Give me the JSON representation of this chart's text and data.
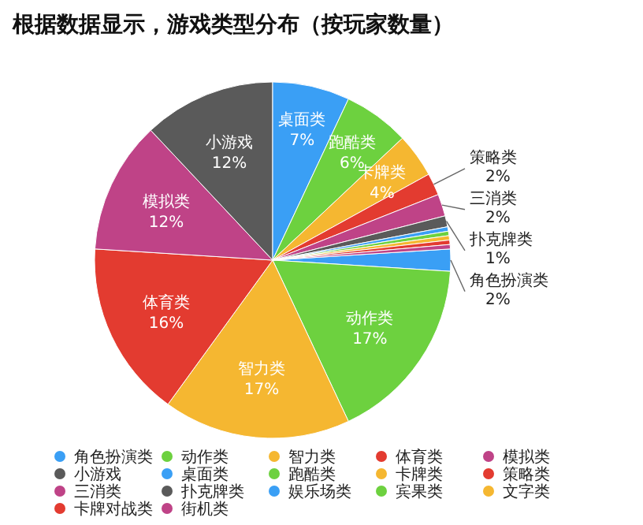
{
  "chart_data": {
    "type": "pie",
    "title": "根据数据显示，游戏类型分布（按玩家数量）",
    "categories": [
      "角色扮演类",
      "动作类",
      "智力类",
      "体育类",
      "模拟类",
      "小游戏",
      "桌面类",
      "跑酷类",
      "卡牌类",
      "策略类",
      "三消类",
      "扑克牌类",
      "娱乐场类",
      "宾果类",
      "文字类",
      "卡牌对战类",
      "街机类"
    ],
    "values": [
      2,
      17,
      17,
      16,
      12,
      12,
      7,
      6,
      4,
      2,
      2,
      1,
      0.4,
      0.4,
      0.4,
      0.4,
      0.4
    ],
    "value_labels": [
      "2%",
      "17%",
      "17%",
      "16%",
      "12%",
      "12%",
      "7%",
      "6%",
      "4%",
      "2%",
      "2%",
      "1%",
      null,
      null,
      null,
      null,
      null
    ],
    "colors": [
      "#3a9ff5",
      "#6dd13f",
      "#f5b731",
      "#e33b30",
      "#bf4387",
      "#5a5a5a",
      "#3a9ff5",
      "#6dd13f",
      "#f5b731",
      "#e33b30",
      "#bf4387",
      "#5a5a5a",
      "#3a9ff5",
      "#6dd13f",
      "#f5b731",
      "#e33b30",
      "#bf4387"
    ],
    "legend": "bottom"
  }
}
